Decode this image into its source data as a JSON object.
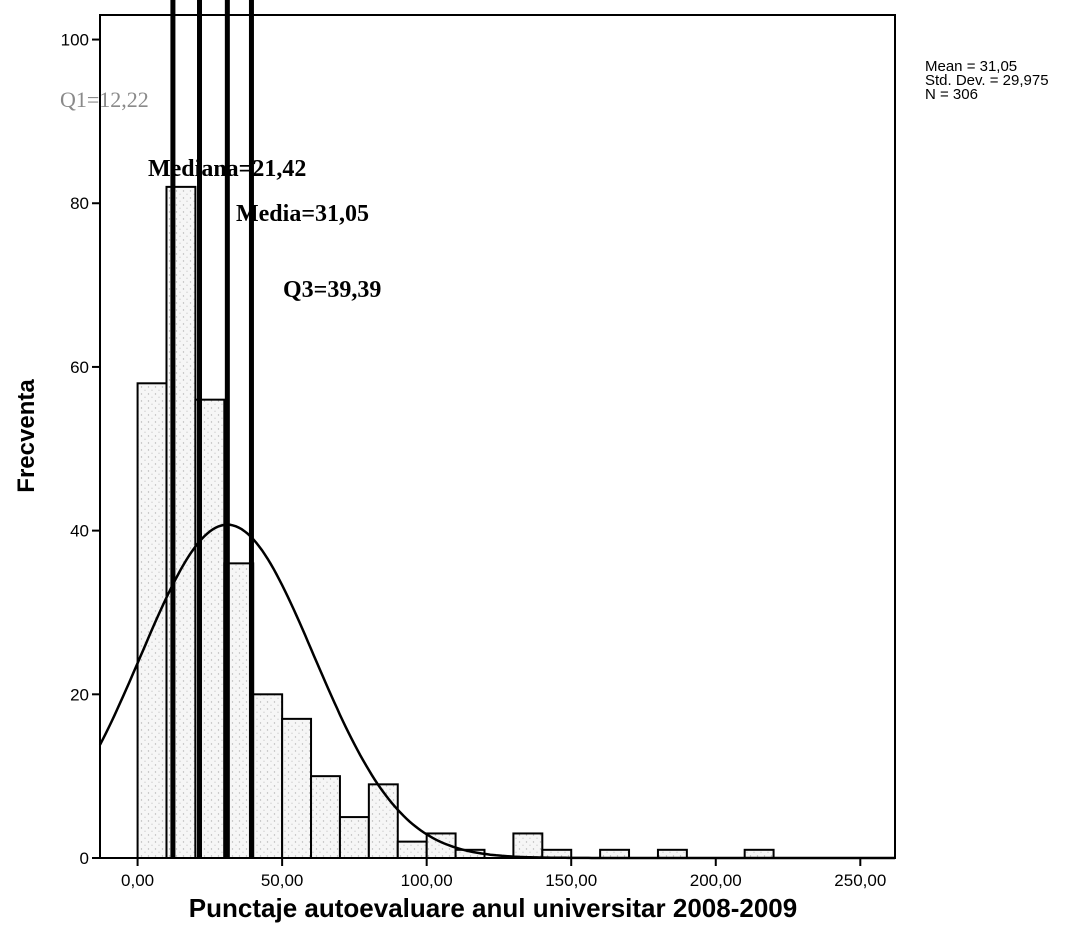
{
  "chart_data": {
    "type": "bar",
    "subtype": "histogram",
    "xlabel": "Punctaje autoevaluare anul universitar 2008-2009",
    "ylabel": "Frecventa",
    "xlim": [
      -13,
      262
    ],
    "ylim": [
      0,
      103
    ],
    "x_ticks": [
      0,
      50,
      100,
      150,
      200,
      250
    ],
    "x_tick_labels": [
      "0,00",
      "50,00",
      "100,00",
      "150,00",
      "200,00",
      "250,00"
    ],
    "y_ticks": [
      0,
      20,
      40,
      60,
      80,
      100
    ],
    "y_tick_labels": [
      "0",
      "20",
      "40",
      "60",
      "80",
      "100"
    ],
    "bin_width": 10,
    "bins": [
      {
        "start": 0,
        "end": 10,
        "count": 58
      },
      {
        "start": 10,
        "end": 20,
        "count": 82
      },
      {
        "start": 20,
        "end": 30,
        "count": 56
      },
      {
        "start": 30,
        "end": 40,
        "count": 36
      },
      {
        "start": 40,
        "end": 50,
        "count": 20
      },
      {
        "start": 50,
        "end": 60,
        "count": 17
      },
      {
        "start": 60,
        "end": 70,
        "count": 10
      },
      {
        "start": 70,
        "end": 80,
        "count": 5
      },
      {
        "start": 80,
        "end": 90,
        "count": 9
      },
      {
        "start": 90,
        "end": 100,
        "count": 2
      },
      {
        "start": 100,
        "end": 110,
        "count": 3
      },
      {
        "start": 110,
        "end": 120,
        "count": 1
      },
      {
        "start": 130,
        "end": 140,
        "count": 3
      },
      {
        "start": 140,
        "end": 150,
        "count": 1
      },
      {
        "start": 160,
        "end": 170,
        "count": 1
      },
      {
        "start": 180,
        "end": 190,
        "count": 1
      },
      {
        "start": 210,
        "end": 220,
        "count": 1
      }
    ],
    "normal_curve": {
      "mean": 31.05,
      "std_dev": 29.975,
      "n": 306
    },
    "reference_lines": [
      {
        "label": "Q1=12,22",
        "value": 12.22
      },
      {
        "label": "Mediana=21,42",
        "value": 21.42
      },
      {
        "label": "Media=31,05",
        "value": 31.05
      },
      {
        "label": "Q3=39,39",
        "value": 39.39
      }
    ],
    "stats_box": [
      "Mean = 31,05",
      "Std. Dev. = 29,975",
      "N = 306"
    ],
    "grid": false,
    "colors": {
      "bar_fill": "#f4f4f4",
      "stroke": "#000000",
      "q1_label": "#8a8a8a"
    }
  }
}
